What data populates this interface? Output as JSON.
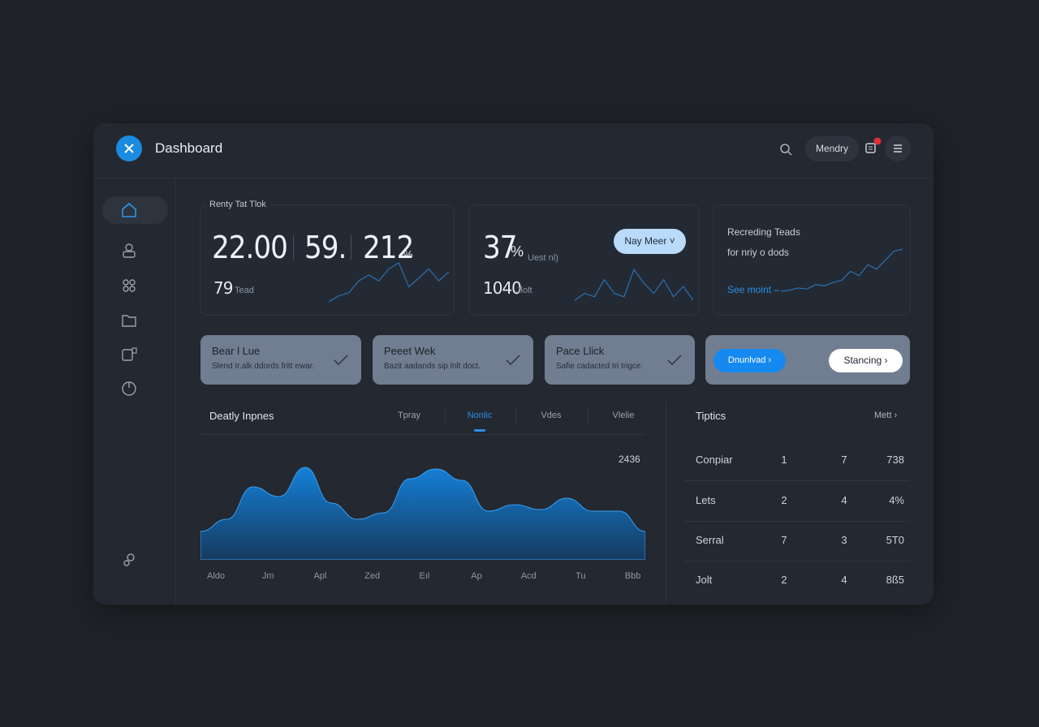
{
  "header": {
    "title": "Dashboard",
    "user": "Mendry"
  },
  "stats": {
    "card1": {
      "label": "Renty Tat Tlok",
      "figures": [
        "22.00",
        "59.",
        "212"
      ],
      "figure_unit": "%",
      "sub_value": "79",
      "sub_label": "Tead",
      "sparkline": [
        4,
        8,
        10,
        18,
        22,
        18,
        26,
        30,
        14,
        20,
        26,
        18,
        24
      ]
    },
    "card2": {
      "value": "37",
      "value_unit": "%",
      "value_note": "Uest nl)",
      "sub_value": "1040",
      "sub_label": "Jlolt",
      "button": "Nay Meer",
      "sparkline": [
        4,
        8,
        6,
        16,
        8,
        6,
        22,
        14,
        8,
        16,
        6,
        12,
        4
      ]
    },
    "card3": {
      "line1": "Recreding Teads",
      "line2": "for nriy o dods",
      "link": "See moint",
      "sparkline": [
        2,
        3,
        5,
        4,
        8,
        7,
        10,
        12,
        20,
        16,
        26,
        22,
        30,
        38,
        40
      ]
    }
  },
  "tasks": [
    {
      "title": "Bear l Lue",
      "text": "Slend Ir.alk ddords fritt ewar."
    },
    {
      "title": "Peeet Wek",
      "text": "Bazit aadands sip lnlt doct."
    },
    {
      "title": "Pace Llick",
      "text": "Safie cadacted tri trigce."
    }
  ],
  "actions": [
    "Dnunlvad",
    "Stancing"
  ],
  "activity": {
    "title": "Deatly Inpnes",
    "tabs": [
      "Tpray",
      "Nonlic",
      "Vdes",
      "Vlelie"
    ],
    "active_tab": 1,
    "annotation": "2436",
    "x_labels": [
      "Aldo",
      "Jm",
      "Apl",
      "Zed",
      "Eıl",
      "Ap",
      "Acd",
      "Tu",
      "Bbb"
    ],
    "values": [
      35,
      50,
      90,
      78,
      114,
      70,
      50,
      58,
      100,
      112,
      98,
      60,
      68,
      62,
      76,
      60,
      60,
      35
    ]
  },
  "table": {
    "title": "Tiptics",
    "link": "Mett",
    "rows": [
      [
        "Conpiar",
        "1",
        "7",
        "738"
      ],
      [
        "Lets",
        "2",
        "4",
        "4%"
      ],
      [
        "Serral",
        "7",
        "3",
        "5T0"
      ],
      [
        "Jolt",
        "2",
        "4",
        "8ß5"
      ]
    ]
  }
}
